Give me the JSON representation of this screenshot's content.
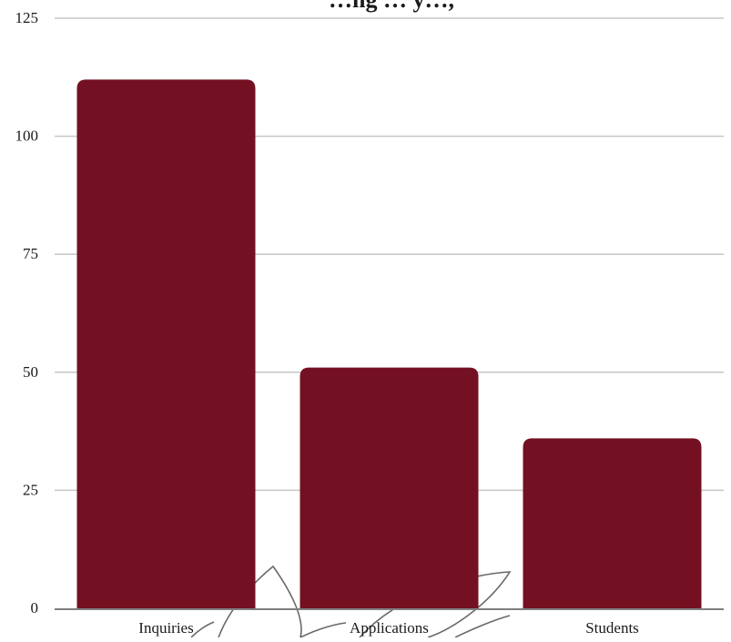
{
  "chart_data": {
    "type": "bar",
    "title": "…ng … y…,",
    "categories": [
      "Inquiries",
      "Applications",
      "Students"
    ],
    "values": [
      112,
      51,
      36
    ],
    "ylim": [
      0,
      125
    ],
    "yticks": [
      0,
      25,
      50,
      75,
      100,
      125
    ],
    "grid": true,
    "legend": "none",
    "colors": {
      "bar": "#731122",
      "grid": "#c6c6c6",
      "baseline": "#7f7f7f",
      "text": "#1a1a1a",
      "watermark": "#444444"
    }
  }
}
